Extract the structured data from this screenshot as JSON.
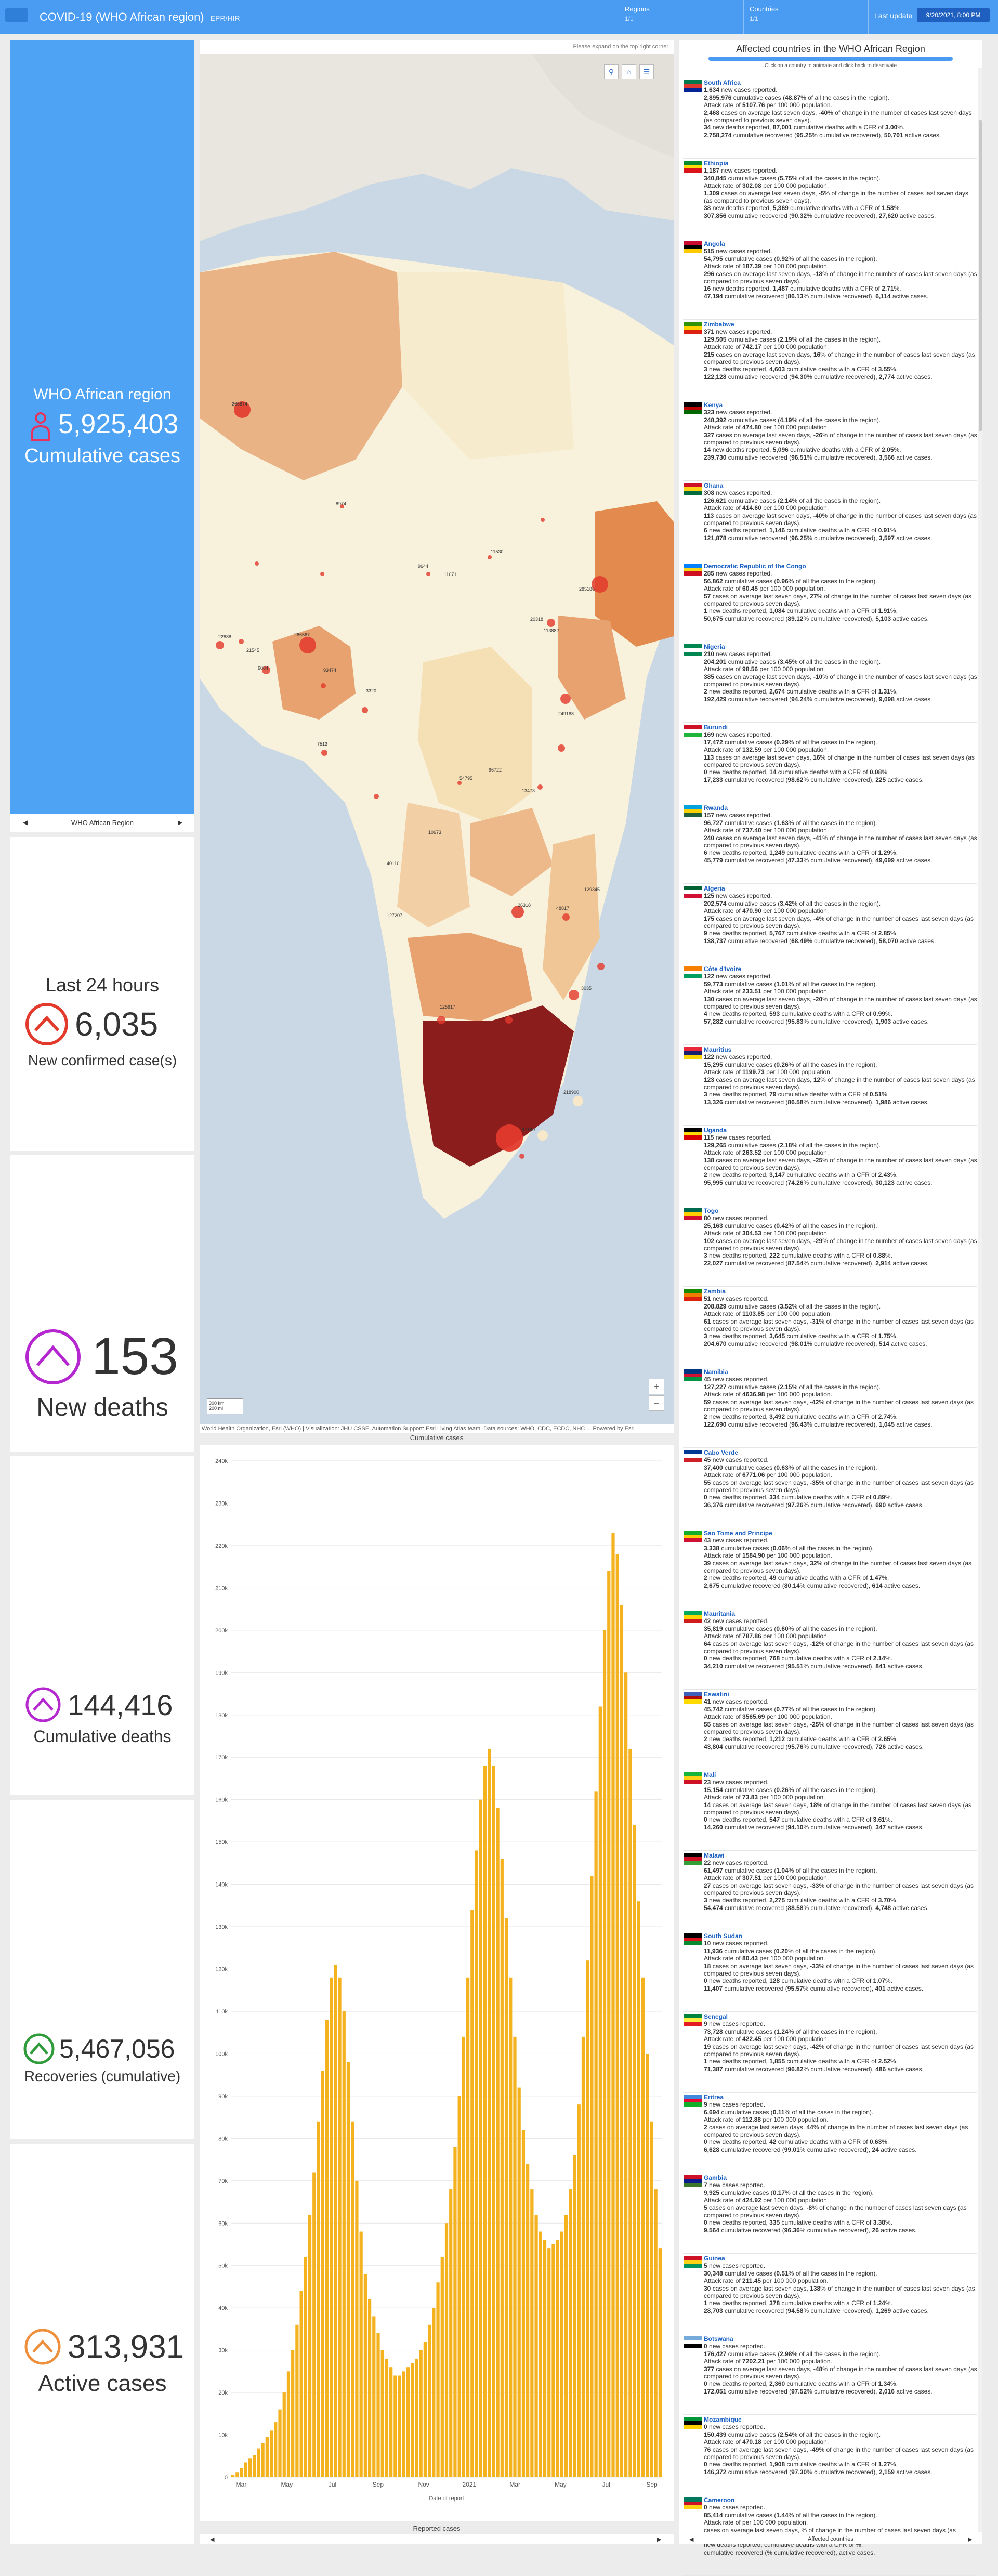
{
  "header": {
    "title": "COVID-19 (WHO African region)",
    "subtitle": "EPR/HIR",
    "regions_label": "Regions",
    "regions_value": "1/1",
    "countries_label": "Countries",
    "countries_value": "1/1",
    "last_update_label": "Last update",
    "last_update_value": "9/20/2021, 8:00 PM"
  },
  "region_card": {
    "title": "WHO African region",
    "value": "5,925,403",
    "label": "Cumulative cases",
    "pager_text": "WHO African Region"
  },
  "stats": {
    "last24_title": "Last 24 hours",
    "new_cases_value": "6,035",
    "new_cases_label": "New confirmed case(s)",
    "new_deaths_value": "153",
    "new_deaths_label": "New deaths",
    "cum_deaths_value": "144,416",
    "cum_deaths_label": "Cumulative deaths",
    "recoveries_value": "5,467,056",
    "recoveries_label": "Recoveries (cumulative)",
    "active_value": "313,931",
    "active_label": "Active cases"
  },
  "colors": {
    "header": "#4a9cf2",
    "bar": "#f4b21f",
    "case_red": "#e23a2c",
    "death_purple": "#b528d0",
    "recovery_green": "#2f9b3a",
    "active_orange": "#ee8f3b"
  },
  "map": {
    "hint": "Please expand on the top right corner",
    "attribution": "World Health Organization, Esri (WHO) | Visualization: JHU CSSE, Automation Support: Esri Living Atlas team. Data sources: WHO, CDC, ECDC, NHC ... Powered by Esri",
    "caption": "Cumulative cases",
    "scale_1": "300 km",
    "scale_2": "200 mi",
    "labels": [
      "265874",
      "266567",
      "8974",
      "9644",
      "22888",
      "21545",
      "3320",
      "93474",
      "11071",
      "11530",
      "20318",
      "113882",
      "249188",
      "6084",
      "7513",
      "285186",
      "13473",
      "54795",
      "48817",
      "96722",
      "10673",
      "26318",
      "3035",
      "125917",
      "40110",
      "87160",
      "218900",
      "127207",
      "129345"
    ]
  },
  "chart_data": {
    "type": "bar",
    "title": "",
    "xlabel": "Date of report",
    "ylabel": "",
    "ylim": [
      0,
      240000
    ],
    "yticks": [
      "0",
      "10k",
      "20k",
      "30k",
      "40k",
      "50k",
      "60k",
      "70k",
      "80k",
      "90k",
      "100k",
      "110k",
      "120k",
      "130k",
      "140k",
      "150k",
      "160k",
      "170k",
      "180k",
      "190k",
      "200k",
      "210k",
      "220k",
      "230k",
      "240k"
    ],
    "xticks": [
      "Mar",
      "May",
      "Jul",
      "Sep",
      "Nov",
      "2021",
      "Mar",
      "May",
      "Jul",
      "Sep"
    ],
    "values": [
      500,
      1200,
      2200,
      3500,
      4500,
      5200,
      6800,
      8000,
      9500,
      11000,
      13000,
      16000,
      20000,
      25000,
      30000,
      36000,
      44000,
      52000,
      62000,
      72000,
      84000,
      96000,
      108000,
      118000,
      121000,
      118000,
      110000,
      98000,
      84000,
      70000,
      58000,
      48000,
      42000,
      38000,
      34000,
      30000,
      28000,
      26000,
      24000,
      24000,
      25000,
      26000,
      27000,
      28000,
      30000,
      32000,
      36000,
      40000,
      46000,
      52000,
      60000,
      68000,
      78000,
      90000,
      104000,
      118000,
      134000,
      148000,
      160000,
      168000,
      172000,
      168000,
      158000,
      146000,
      132000,
      118000,
      104000,
      92000,
      82000,
      74000,
      68000,
      62000,
      58000,
      56000,
      54000,
      55000,
      56000,
      58000,
      62000,
      68000,
      76000,
      88000,
      104000,
      122000,
      142000,
      162000,
      182000,
      200000,
      214000,
      223000,
      218000,
      206000,
      190000,
      172000,
      154000,
      136000,
      118000,
      100000,
      84000,
      68000,
      54000
    ],
    "caption": "Reported cases"
  },
  "list": {
    "title": "Affected countries in the WHO African Region",
    "hint": "Click on a country to animate and click back to deactivate",
    "pager_text": "Affected countries",
    "countries": [
      {
        "name": "South Africa",
        "new": "1,634",
        "cum": "2,895,976",
        "pct": "48.87",
        "rate": "5107.76",
        "avg": "2,468",
        "chg": "-40",
        "deaths": "34",
        "cum_deaths": "87,001",
        "cfr": "3.00",
        "recovered": "2,758,274",
        "rec_pct": "95.25",
        "active": "50,701",
        "flag": [
          "#007a4d",
          "#de3831",
          "#002395"
        ]
      },
      {
        "name": "Ethiopia",
        "new": "1,187",
        "cum": "340,845",
        "pct": "5.75",
        "rate": "302.08",
        "avg": "1,309",
        "chg": "-5",
        "deaths": "38",
        "cum_deaths": "5,369",
        "cfr": "1.58",
        "recovered": "307,856",
        "rec_pct": "90.32",
        "active": "27,620",
        "flag": [
          "#078930",
          "#fcdd09",
          "#da121a"
        ]
      },
      {
        "name": "Angola",
        "new": "515",
        "cum": "54,795",
        "pct": "0.92",
        "rate": "187.39",
        "avg": "296",
        "chg": "-18",
        "deaths": "16",
        "cum_deaths": "1,487",
        "cfr": "2.71",
        "recovered": "47,194",
        "rec_pct": "86.13",
        "active": "6,114",
        "flag": [
          "#cc092f",
          "#000000",
          "#ffcb00"
        ]
      },
      {
        "name": "Zimbabwe",
        "new": "371",
        "cum": "129,505",
        "pct": "2.19",
        "rate": "742.17",
        "avg": "215",
        "chg": "16",
        "deaths": "3",
        "cum_deaths": "4,603",
        "cfr": "3.55",
        "recovered": "122,128",
        "rec_pct": "94.30",
        "active": "2,774",
        "flag": [
          "#319208",
          "#ffd200",
          "#de2010"
        ]
      },
      {
        "name": "Kenya",
        "new": "323",
        "cum": "248,392",
        "pct": "4.19",
        "rate": "474.80",
        "avg": "327",
        "chg": "-26",
        "deaths": "14",
        "cum_deaths": "5,096",
        "cfr": "2.05",
        "recovered": "239,730",
        "rec_pct": "96.51",
        "active": "3,566",
        "flag": [
          "#000000",
          "#bb0000",
          "#006600"
        ]
      },
      {
        "name": "Ghana",
        "new": "308",
        "cum": "126,621",
        "pct": "2.14",
        "rate": "414.60",
        "avg": "113",
        "chg": "-40",
        "deaths": "6",
        "cum_deaths": "1,146",
        "cfr": "0.91",
        "recovered": "121,878",
        "rec_pct": "96.25",
        "active": "3,597",
        "flag": [
          "#ce1126",
          "#fcd116",
          "#006b3f"
        ]
      },
      {
        "name": "Democratic Republic of the Congo",
        "new": "285",
        "cum": "56,862",
        "pct": "0.96",
        "rate": "60.45",
        "avg": "57",
        "chg": "27",
        "deaths": "1",
        "cum_deaths": "1,084",
        "cfr": "1.91",
        "recovered": "50,675",
        "rec_pct": "89.12",
        "active": "5,103",
        "flag": [
          "#007fff",
          "#f7d618",
          "#ce1021"
        ]
      },
      {
        "name": "Nigeria",
        "new": "210",
        "cum": "204,201",
        "pct": "3.45",
        "rate": "98.56",
        "avg": "385",
        "chg": "-10",
        "deaths": "2",
        "cum_deaths": "2,674",
        "cfr": "1.31",
        "recovered": "192,429",
        "rec_pct": "94.24",
        "active": "9,098",
        "flag": [
          "#008751",
          "#ffffff",
          "#008751"
        ]
      },
      {
        "name": "Burundi",
        "new": "169",
        "cum": "17,472",
        "pct": "0.29",
        "rate": "132.59",
        "avg": "113",
        "chg": "16",
        "deaths": "0",
        "cum_deaths": "14",
        "cfr": "0.08",
        "recovered": "17,233",
        "rec_pct": "98.62",
        "active": "225",
        "flag": [
          "#ce1126",
          "#ffffff",
          "#1eb53a"
        ]
      },
      {
        "name": "Rwanda",
        "new": "157",
        "cum": "96,727",
        "pct": "1.63",
        "rate": "737.40",
        "avg": "240",
        "chg": "-41",
        "deaths": "6",
        "cum_deaths": "1,249",
        "cfr": "1.29",
        "recovered": "45,779",
        "rec_pct": "47.33",
        "active": "49,699",
        "flag": [
          "#00a1de",
          "#fad201",
          "#20603d"
        ]
      },
      {
        "name": "Algeria",
        "new": "125",
        "cum": "202,574",
        "pct": "3.42",
        "rate": "470.90",
        "avg": "175",
        "chg": "-4",
        "deaths": "9",
        "cum_deaths": "5,767",
        "cfr": "2.85",
        "recovered": "138,737",
        "rec_pct": "68.49",
        "active": "58,070",
        "flag": [
          "#006233",
          "#ffffff",
          "#d21034"
        ]
      },
      {
        "name": "Côte d'Ivoire",
        "new": "122",
        "cum": "59,773",
        "pct": "1.01",
        "rate": "233.51",
        "avg": "130",
        "chg": "-20",
        "deaths": "4",
        "cum_deaths": "593",
        "cfr": "0.99",
        "recovered": "57,282",
        "rec_pct": "95.83",
        "active": "1,903",
        "flag": [
          "#f77f00",
          "#ffffff",
          "#009e60"
        ]
      },
      {
        "name": "Mauritius",
        "new": "122",
        "cum": "15,295",
        "pct": "0.26",
        "rate": "1199.73",
        "avg": "123",
        "chg": "12",
        "deaths": "3",
        "cum_deaths": "79",
        "cfr": "0.51",
        "recovered": "13,326",
        "rec_pct": "86.58",
        "active": "1,986",
        "flag": [
          "#ea2839",
          "#1a206d",
          "#ffd500"
        ]
      },
      {
        "name": "Uganda",
        "new": "115",
        "cum": "129,265",
        "pct": "2.18",
        "rate": "263.52",
        "avg": "138",
        "chg": "-25",
        "deaths": "2",
        "cum_deaths": "3,147",
        "cfr": "2.43",
        "recovered": "95,995",
        "rec_pct": "74.26",
        "active": "30,123",
        "flag": [
          "#000000",
          "#fcdc04",
          "#d90000"
        ]
      },
      {
        "name": "Togo",
        "new": "80",
        "cum": "25,163",
        "pct": "0.42",
        "rate": "304.53",
        "avg": "102",
        "chg": "-29",
        "deaths": "3",
        "cum_deaths": "222",
        "cfr": "0.88",
        "recovered": "22,027",
        "rec_pct": "87.54",
        "active": "2,914",
        "flag": [
          "#006a4e",
          "#ffce00",
          "#d21034"
        ]
      },
      {
        "name": "Zambia",
        "new": "51",
        "cum": "208,829",
        "pct": "3.52",
        "rate": "1103.85",
        "avg": "61",
        "chg": "-31",
        "deaths": "3",
        "cum_deaths": "3,645",
        "cfr": "1.75",
        "recovered": "204,670",
        "rec_pct": "98.01",
        "active": "514",
        "flag": [
          "#198a00",
          "#ef7d00",
          "#de2010"
        ]
      },
      {
        "name": "Namibia",
        "new": "45",
        "cum": "127,227",
        "pct": "2.15",
        "rate": "4636.98",
        "avg": "59",
        "chg": "-42",
        "deaths": "2",
        "cum_deaths": "3,492",
        "cfr": "2.74",
        "recovered": "122,690",
        "rec_pct": "96.43",
        "active": "1,045",
        "flag": [
          "#003580",
          "#d21034",
          "#009543"
        ]
      },
      {
        "name": "Cabo Verde",
        "new": "45",
        "cum": "37,400",
        "pct": "0.63",
        "rate": "6771.06",
        "avg": "55",
        "chg": "-35",
        "deaths": "0",
        "cum_deaths": "334",
        "cfr": "0.89",
        "recovered": "36,376",
        "rec_pct": "97.26",
        "active": "690",
        "flag": [
          "#003893",
          "#ffffff",
          "#cf2027"
        ]
      },
      {
        "name": "Sao Tome and Principe",
        "new": "43",
        "cum": "3,338",
        "pct": "0.06",
        "rate": "1584.90",
        "avg": "39",
        "chg": "32",
        "deaths": "2",
        "cum_deaths": "49",
        "cfr": "1.47",
        "recovered": "2,675",
        "rec_pct": "80.14",
        "active": "614",
        "flag": [
          "#12ad2b",
          "#ffce00",
          "#d21034"
        ]
      },
      {
        "name": "Mauritania",
        "new": "42",
        "cum": "35,819",
        "pct": "0.60",
        "rate": "787.86",
        "avg": "64",
        "chg": "-12",
        "deaths": "0",
        "cum_deaths": "768",
        "cfr": "2.14",
        "recovered": "34,210",
        "rec_pct": "95.51",
        "active": "841",
        "flag": [
          "#00a95c",
          "#ffd700",
          "#d01c1f"
        ]
      },
      {
        "name": "Eswatini",
        "new": "41",
        "cum": "45,742",
        "pct": "0.77",
        "rate": "3565.69",
        "avg": "55",
        "chg": "-25",
        "deaths": "2",
        "cum_deaths": "1,212",
        "cfr": "2.65",
        "recovered": "43,804",
        "rec_pct": "95.76",
        "active": "726",
        "flag": [
          "#3e5eb9",
          "#b10c0c",
          "#ffd900"
        ]
      },
      {
        "name": "Mali",
        "new": "23",
        "cum": "15,154",
        "pct": "0.26",
        "rate": "73.83",
        "avg": "14",
        "chg": "18",
        "deaths": "0",
        "cum_deaths": "547",
        "cfr": "3.61",
        "recovered": "14,260",
        "rec_pct": "94.10",
        "active": "347",
        "flag": [
          "#14b53a",
          "#fcd116",
          "#ce1126"
        ]
      },
      {
        "name": "Malawi",
        "new": "22",
        "cum": "61,497",
        "pct": "1.04",
        "rate": "307.51",
        "avg": "27",
        "chg": "-33",
        "deaths": "3",
        "cum_deaths": "2,275",
        "cfr": "3.70",
        "recovered": "54,474",
        "rec_pct": "88.58",
        "active": "4,748",
        "flag": [
          "#000000",
          "#ce1126",
          "#339e35"
        ]
      },
      {
        "name": "South Sudan",
        "new": "10",
        "cum": "11,936",
        "pct": "0.20",
        "rate": "80.43",
        "avg": "18",
        "chg": "-33",
        "deaths": "0",
        "cum_deaths": "128",
        "cfr": "1.07",
        "recovered": "11,407",
        "rec_pct": "95.57",
        "active": "401",
        "flag": [
          "#000000",
          "#da121a",
          "#078930"
        ]
      },
      {
        "name": "Senegal",
        "new": "9",
        "cum": "73,728",
        "pct": "1.24",
        "rate": "422.45",
        "avg": "19",
        "chg": "-42",
        "deaths": "1",
        "cum_deaths": "1,855",
        "cfr": "2.52",
        "recovered": "71,387",
        "rec_pct": "96.82",
        "active": "486",
        "flag": [
          "#00853f",
          "#fdef42",
          "#e31b23"
        ]
      },
      {
        "name": "Eritrea",
        "new": "9",
        "cum": "6,694",
        "pct": "0.11",
        "rate": "112.88",
        "avg": "2",
        "chg": "44",
        "deaths": "0",
        "cum_deaths": "42",
        "cfr": "0.63",
        "recovered": "6,628",
        "rec_pct": "99.01",
        "active": "24",
        "flag": [
          "#4189dd",
          "#ea0437",
          "#12ad2b"
        ]
      },
      {
        "name": "Gambia",
        "new": "7",
        "cum": "9,925",
        "pct": "0.17",
        "rate": "424.92",
        "avg": "5",
        "chg": "-8",
        "deaths": "0",
        "cum_deaths": "335",
        "cfr": "3.38",
        "recovered": "9,564",
        "rec_pct": "96.36",
        "active": "26",
        "flag": [
          "#ce1126",
          "#0c1c8c",
          "#3a7728"
        ]
      },
      {
        "name": "Guinea",
        "new": "5",
        "cum": "30,348",
        "pct": "0.51",
        "rate": "211.45",
        "avg": "30",
        "chg": "138",
        "deaths": "1",
        "cum_deaths": "378",
        "cfr": "1.24",
        "recovered": "28,703",
        "rec_pct": "94.58",
        "active": "1,269",
        "flag": [
          "#ce1126",
          "#fcd116",
          "#009460"
        ]
      },
      {
        "name": "Botswana",
        "new": "0",
        "cum": "176,427",
        "pct": "2.98",
        "rate": "7202.21",
        "avg": "377",
        "chg": "-48",
        "deaths": "0",
        "cum_deaths": "2,360",
        "cfr": "1.34",
        "recovered": "172,051",
        "rec_pct": "97.52",
        "active": "2,016",
        "flag": [
          "#75aadb",
          "#ffffff",
          "#000000"
        ]
      },
      {
        "name": "Mozambique",
        "new": "0",
        "cum": "150,439",
        "pct": "2.54",
        "rate": "470.18",
        "avg": "76",
        "chg": "-49",
        "deaths": "0",
        "cum_deaths": "1,908",
        "cfr": "1.27",
        "recovered": "146,372",
        "rec_pct": "97.30",
        "active": "2,159",
        "flag": [
          "#009739",
          "#000000",
          "#ffd100"
        ]
      },
      {
        "name": "Cameroon",
        "new": "0",
        "cum": "85,414",
        "pct": "1.44",
        "rate": "",
        "avg": "",
        "chg": "",
        "deaths": "",
        "cum_deaths": "",
        "cfr": "",
        "recovered": "",
        "rec_pct": "",
        "active": "",
        "flag": [
          "#007a5e",
          "#ce1126",
          "#fcd116"
        ]
      }
    ]
  }
}
